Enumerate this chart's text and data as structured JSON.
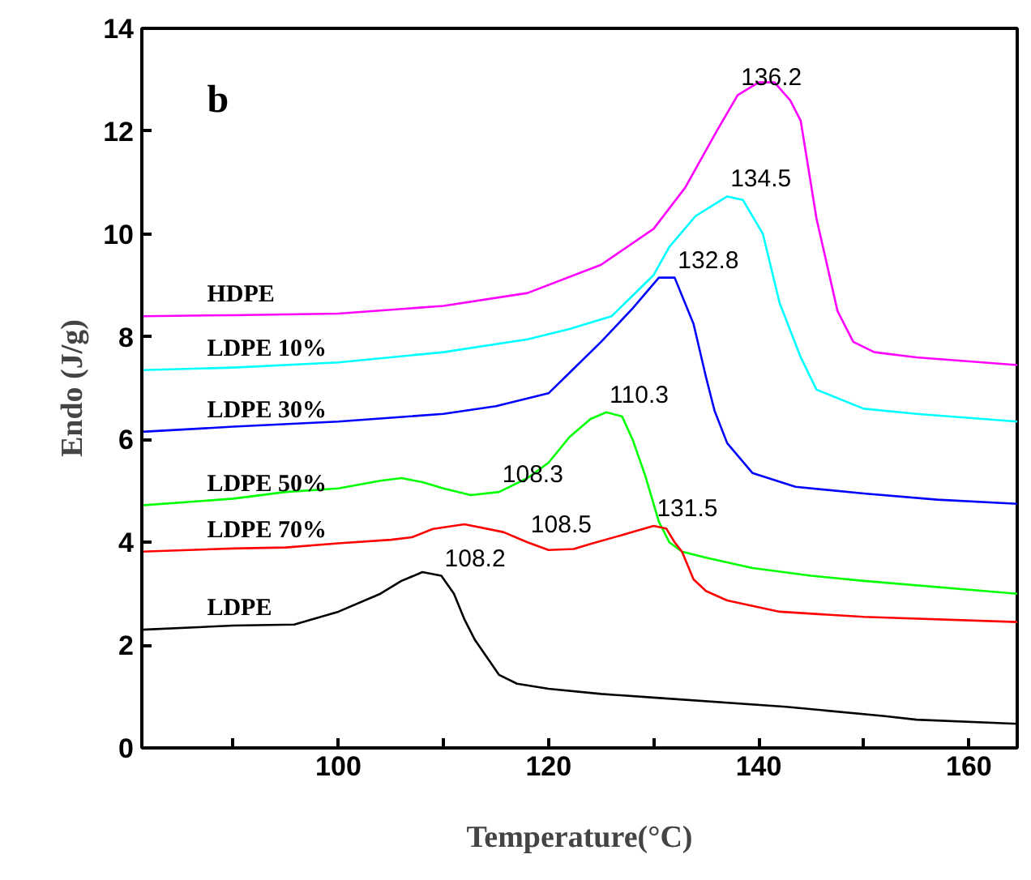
{
  "chart_data": {
    "type": "line",
    "xlabel": "Temperature(°C)",
    "ylabel": "Endo (J/g)",
    "xlim": [
      81.3,
      164.6
    ],
    "ylim": [
      0,
      14
    ],
    "xticks": [
      {
        "value": 90,
        "label": null
      },
      100,
      {
        "value": 110,
        "label": null
      },
      120,
      {
        "value": 130,
        "label": null
      },
      140,
      {
        "value": 150,
        "label": null
      },
      160
    ],
    "yticks": [
      0,
      2,
      4,
      6,
      8,
      10,
      12,
      14
    ],
    "grid": false,
    "annotations": [
      "b",
      {
        "text": "136.2",
        "x": 138,
        "y": 12.7
      },
      {
        "text": "134.5",
        "x": 137,
        "y": 10.73
      },
      {
        "text": "132.8",
        "x": 132,
        "y": 9.15
      },
      {
        "text": "110.3",
        "x": 125.5,
        "y": 6.53
      },
      {
        "text": "108.3",
        "x": 115.3,
        "y": 4.98
      },
      {
        "text": "108.5",
        "x": 118,
        "y": 4.0
      },
      {
        "text": "131.5",
        "x": 130,
        "y": 4.32
      },
      {
        "text": "108.2",
        "x": 109.8,
        "y": 3.35
      }
    ],
    "series": [
      {
        "name": "HDPE",
        "color": "#ff00ff",
        "x": [
          81.3,
          90,
          100,
          110,
          118,
          125,
          130,
          133,
          136,
          138,
          140,
          141.5,
          143,
          144,
          145.5,
          147.5,
          149,
          151,
          155,
          164.6
        ],
        "values": [
          8.4,
          8.42,
          8.45,
          8.6,
          8.85,
          9.4,
          10.1,
          10.9,
          12.0,
          12.7,
          12.95,
          12.95,
          12.6,
          12.2,
          10.3,
          8.5,
          7.9,
          7.7,
          7.6,
          7.45
        ]
      },
      {
        "name": "LDPE 10%",
        "color": "#00ffff",
        "x": [
          81.3,
          90,
          100,
          110,
          118,
          122,
          126,
          130,
          131.5,
          134,
          137,
          138.5,
          140.4,
          142,
          144,
          145.5,
          150,
          155,
          164.6
        ],
        "values": [
          7.35,
          7.4,
          7.5,
          7.7,
          7.95,
          8.15,
          8.4,
          9.2,
          9.75,
          10.35,
          10.73,
          10.66,
          10.0,
          8.65,
          7.6,
          6.97,
          6.6,
          6.5,
          6.35
        ]
      },
      {
        "name": "LDPE 30%",
        "color": "#0000ff",
        "x": [
          81.3,
          90,
          100,
          110,
          115,
          120,
          122,
          125,
          128,
          130.5,
          132,
          133.8,
          135,
          135.8,
          137,
          139.4,
          143.5,
          150,
          157,
          164.6
        ],
        "values": [
          6.15,
          6.25,
          6.35,
          6.5,
          6.65,
          6.9,
          7.3,
          7.9,
          8.55,
          9.15,
          9.15,
          8.25,
          7.2,
          6.56,
          5.93,
          5.35,
          5.08,
          4.95,
          4.83,
          4.75
        ]
      },
      {
        "name": "LDPE 50%",
        "color": "#00ff00",
        "x": [
          81.3,
          90,
          95,
          100,
          104,
          106,
          108,
          110,
          112.6,
          115.3,
          118,
          120,
          122,
          124,
          125.5,
          127,
          128,
          129.2,
          130.5,
          131.5,
          132.7,
          135,
          139.4,
          145,
          150,
          164.6
        ],
        "values": [
          4.72,
          4.85,
          4.98,
          5.05,
          5.2,
          5.25,
          5.17,
          5.05,
          4.92,
          4.98,
          5.25,
          5.55,
          6.05,
          6.4,
          6.53,
          6.45,
          6.0,
          5.3,
          4.4,
          4.0,
          3.82,
          3.7,
          3.5,
          3.35,
          3.25,
          3.0
        ]
      },
      {
        "name": "LDPE 70%",
        "color": "#ff0000",
        "x": [
          81.3,
          90,
          95,
          100,
          105,
          107,
          109,
          112,
          115.7,
          118,
          120,
          122.4,
          124,
          128,
          130,
          131.2,
          132,
          132.7,
          133.8,
          135,
          137,
          142,
          150,
          164.6
        ],
        "values": [
          3.82,
          3.88,
          3.9,
          3.98,
          4.05,
          4.1,
          4.26,
          4.35,
          4.2,
          4.0,
          3.85,
          3.87,
          3.97,
          4.2,
          4.32,
          4.27,
          4.0,
          3.82,
          3.28,
          3.05,
          2.87,
          2.65,
          2.55,
          2.45
        ]
      },
      {
        "name": "LDPE",
        "color": "#000000",
        "x": [
          81.3,
          90,
          95.8,
          100,
          104,
          106,
          108,
          109.8,
          111,
          112,
          113,
          115.3,
          117,
          120,
          125,
          130,
          142.6,
          152,
          155,
          164.6
        ],
        "values": [
          2.3,
          2.38,
          2.4,
          2.65,
          3.0,
          3.25,
          3.42,
          3.35,
          3.0,
          2.5,
          2.1,
          1.42,
          1.25,
          1.15,
          1.05,
          0.98,
          0.8,
          0.62,
          0.55,
          0.47
        ]
      }
    ]
  }
}
